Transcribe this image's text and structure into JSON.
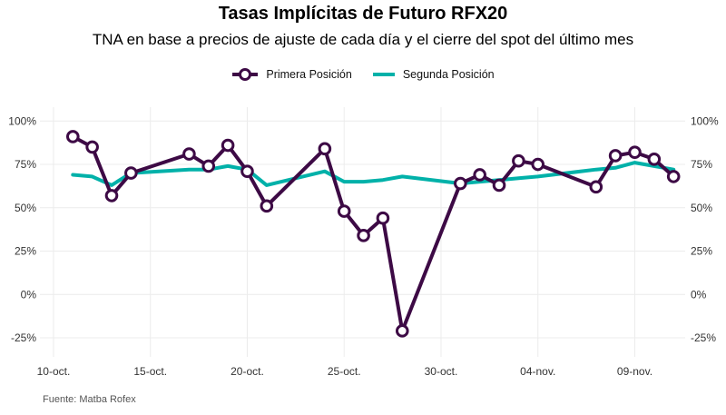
{
  "title": "Tasas Implícitas de Futuro RFX20",
  "subtitle": "TNA en base a precios de ajuste de cada día y el cierre del spot del último mes",
  "source": "Fuente: Matba Rofex",
  "colors": {
    "primera": "#3d0a45",
    "segunda": "#00b1a9",
    "grid": "#ececec"
  },
  "chart_data": {
    "type": "line",
    "title": "Tasas Implícitas de Futuro RFX20",
    "subtitle": "TNA en base a precios de ajuste de cada día y el cierre del spot del último mes",
    "xlabel": "",
    "ylabel": "",
    "xlim_days": [
      9.3,
      42.6
    ],
    "ylim": [
      -0.36,
      1.08
    ],
    "x_ticks": [
      {
        "day": 10,
        "label": "10-oct."
      },
      {
        "day": 15,
        "label": "15-oct."
      },
      {
        "day": 20,
        "label": "20-oct."
      },
      {
        "day": 25,
        "label": "25-oct."
      },
      {
        "day": 30,
        "label": "30-oct."
      },
      {
        "day": 35,
        "label": "04-nov."
      },
      {
        "day": 40,
        "label": "09-nov."
      }
    ],
    "y_ticks": [
      {
        "value": 1.0,
        "label": "100%"
      },
      {
        "value": 0.75,
        "label": "75%"
      },
      {
        "value": 0.5,
        "label": "50%"
      },
      {
        "value": 0.25,
        "label": "25%"
      },
      {
        "value": 0.0,
        "label": "0%"
      },
      {
        "value": -0.25,
        "label": "-25%"
      }
    ],
    "grid": true,
    "legend_position": "top-center",
    "series": [
      {
        "name": "Primera Posición",
        "color": "#3d0a45",
        "markers": true,
        "x": [
          11,
          12,
          13,
          14,
          17,
          18,
          19,
          20,
          21,
          24,
          25,
          26,
          27,
          28,
          31,
          32,
          33,
          34,
          35,
          38,
          39,
          40,
          41,
          42
        ],
        "y": [
          0.91,
          0.85,
          0.57,
          0.7,
          0.81,
          0.74,
          0.86,
          0.71,
          0.51,
          0.84,
          0.48,
          0.34,
          0.44,
          -0.21,
          0.64,
          0.69,
          0.63,
          0.77,
          0.75,
          0.62,
          0.8,
          0.82,
          0.78,
          0.68
        ]
      },
      {
        "name": "Segunda Posición",
        "color": "#00b1a9",
        "markers": false,
        "x": [
          11,
          12,
          13,
          14,
          17,
          18,
          19,
          20,
          21,
          24,
          25,
          26,
          27,
          28,
          31,
          32,
          33,
          34,
          35,
          38,
          39,
          40,
          41,
          42
        ],
        "y": [
          0.69,
          0.68,
          0.63,
          0.7,
          0.72,
          0.72,
          0.74,
          0.72,
          0.63,
          0.71,
          0.65,
          0.65,
          0.66,
          0.68,
          0.64,
          0.65,
          0.66,
          0.67,
          0.68,
          0.72,
          0.73,
          0.76,
          0.74,
          0.72
        ]
      }
    ]
  }
}
